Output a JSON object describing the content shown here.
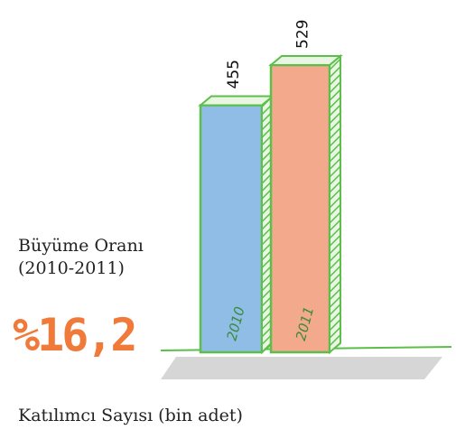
{
  "chart_data": {
    "type": "bar",
    "categories": [
      "2010",
      "2011"
    ],
    "values": [
      455,
      529
    ],
    "colors": [
      "#8fbde6",
      "#f2a98c"
    ],
    "outline": "#5cbf4a",
    "growth_label": [
      "Büyüme Oranı",
      "(2010-2011)"
    ],
    "growth_value": "%16,2",
    "x_label": "Katılımcı Sayısı (bin adet)"
  }
}
